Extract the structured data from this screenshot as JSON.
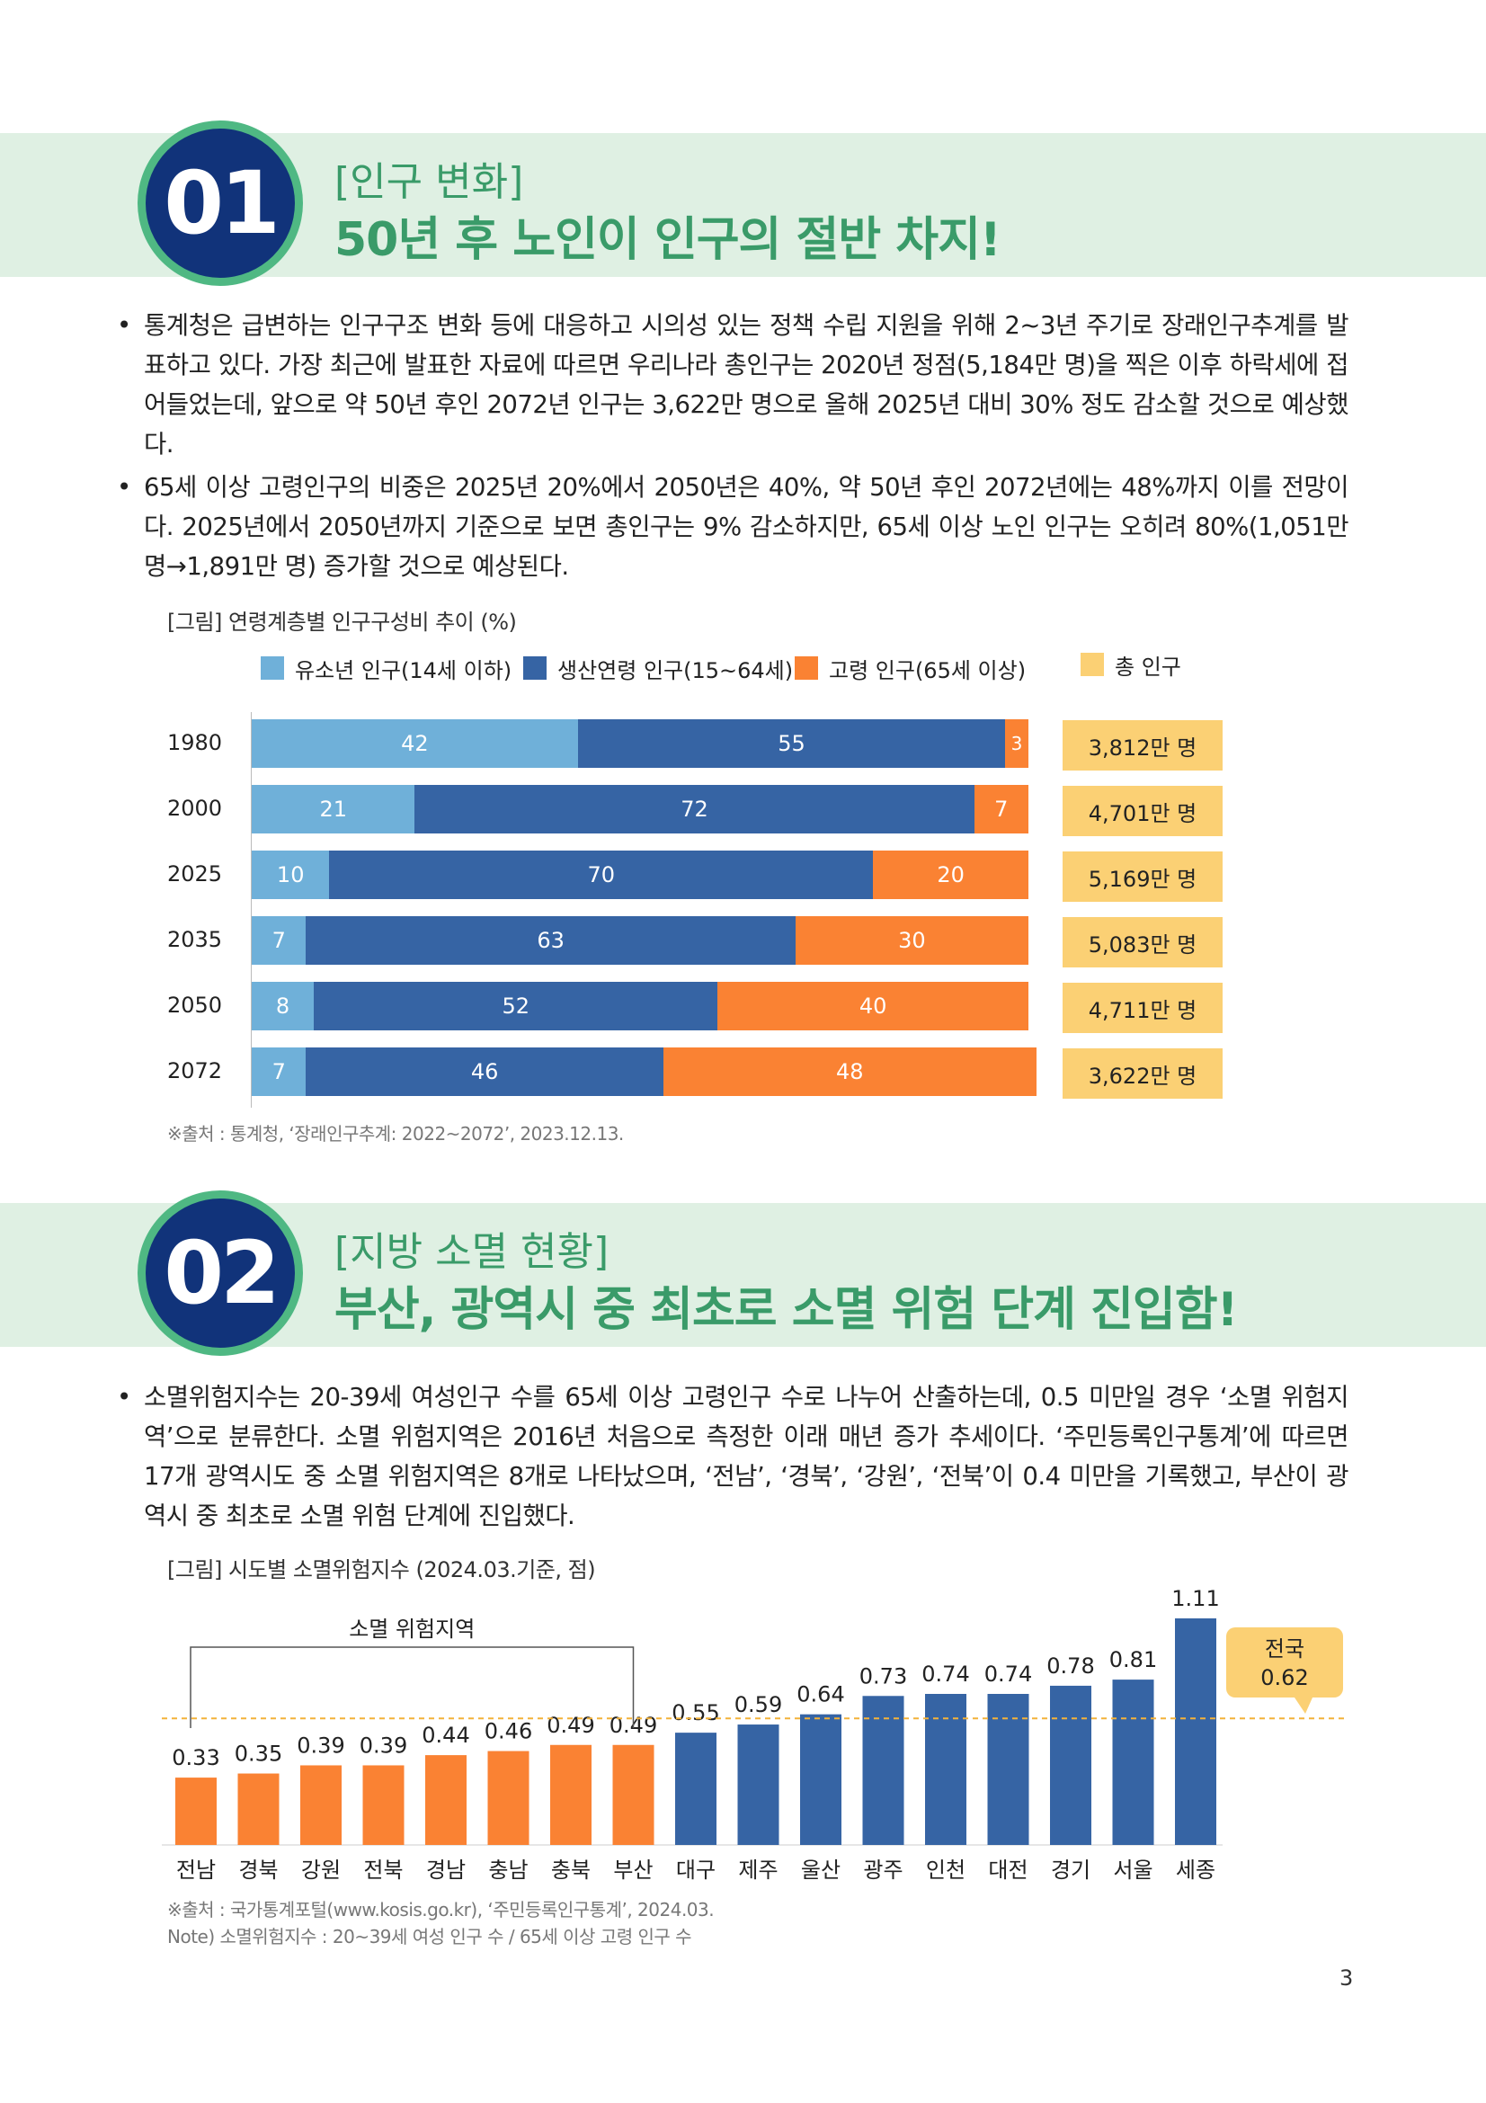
{
  "section1": {
    "number": "01",
    "tag": "[인구 변화]",
    "title": "50년 후 노인이 인구의 절반 차지!",
    "bullets": [
      "통계청은 급변하는 인구구조 변화 등에 대응하고 시의성 있는 정책 수립 지원을 위해 2~3년 주기로 장래인구추계를 발표하고 있다. 가장 최근에 발표한 자료에 따르면 우리나라 총인구는 2020년 정점(5,184만 명)을 찍은 이후 하락세에 접어들었는데, 앞으로 약 50년 후인 2072년 인구는 3,622만 명으로 올해 2025년 대비 30% 정도 감소할 것으로 예상했다.",
      "65세 이상 고령인구의 비중은 2025년 20%에서 2050년은 40%, 약 50년 후인 2072년에는 48%까지 이를 전망이다. 2025년에서 2050년까지 기준으로 보면 총인구는 9% 감소하지만, 65세 이상 노인 인구는 오히려 80%(1,051만 명→1,891만 명) 증가할 것으로 예상된다."
    ],
    "figure_caption": "[그림] 연령계층별 인구구성비 추이 (%)",
    "source": "※출처 : 통계청, ‘장래인구추계: 2022~2072’, 2023.12.13."
  },
  "section2": {
    "number": "02",
    "tag": "[지방 소멸 현황]",
    "title": "부산, 광역시 중 최초로 소멸 위험 단계 진입함!",
    "bullets": [
      "소멸위험지수는 20-39세 여성인구 수를 65세 이상 고령인구 수로 나누어 산출하는데, 0.5 미만일 경우 ‘소멸 위험지역’으로 분류한다. 소멸 위험지역은 2016년 처음으로 측정한 이래 매년 증가 추세이다. ‘주민등록인구통계’에 따르면 17개 광역시도 중 소멸 위험지역은 8개로 나타났으며, ‘전남’, ‘경북’, ‘강원’, ‘전북’이 0.4 미만을 기록했고, 부산이 광역시 중 최초로 소멸 위험 단계에 진입했다."
    ],
    "figure_caption": "[그림] 시도별 소멸위험지수 (2024.03.기준, 점)",
    "source": "※출처 : 국가통계포털(www.kosis.go.kr), ‘주민등록인구통계’, 2024.03.",
    "note": "Note) 소멸위험지수 : 20~39세 여성 인구 수 / 65세 이상 고령 인구 수"
  },
  "page_number": "3",
  "chart_data": [
    {
      "type": "bar",
      "orientation": "horizontal-stacked",
      "title": "[그림] 연령계층별 인구구성비 추이 (%)",
      "categories": [
        "1980",
        "2000",
        "2025",
        "2035",
        "2050",
        "2072"
      ],
      "series": [
        {
          "name": "유소년 인구(14세 이하)",
          "color": "#6fb0d9",
          "values": [
            42,
            21,
            10,
            7,
            8,
            7
          ]
        },
        {
          "name": "생산연령 인구(15~64세)",
          "color": "#3664a4",
          "values": [
            55,
            72,
            70,
            63,
            52,
            46
          ]
        },
        {
          "name": "고령 인구(65세 이상)",
          "color": "#fa8233",
          "values": [
            3,
            7,
            20,
            30,
            40,
            48
          ]
        }
      ],
      "total_label": "총 인구",
      "total_color": "#fbd074",
      "totals": [
        "3,812만 명",
        "4,701만 명",
        "5,169만 명",
        "5,083만 명",
        "4,711만 명",
        "3,622만 명"
      ],
      "xlim": [
        0,
        100
      ]
    },
    {
      "type": "bar",
      "title": "[그림] 시도별 소멸위험지수 (2024.03.기준, 점)",
      "categories": [
        "전남",
        "경북",
        "강원",
        "전북",
        "경남",
        "충남",
        "충북",
        "부산",
        "대구",
        "제주",
        "울산",
        "광주",
        "인천",
        "대전",
        "경기",
        "서울",
        "세종"
      ],
      "values": [
        0.33,
        0.35,
        0.39,
        0.39,
        0.44,
        0.46,
        0.49,
        0.49,
        0.55,
        0.59,
        0.64,
        0.73,
        0.74,
        0.74,
        0.78,
        0.81,
        1.11
      ],
      "value_labels": [
        "0.33",
        "0.35",
        "0.39",
        "0.39",
        "0.44",
        "0.46",
        "0.49",
        "0.49",
        "0.55",
        "0.59",
        "0.64",
        "0.73",
        "0.74",
        "0.74",
        "0.78",
        "0.81",
        "1.11"
      ],
      "risk_count": 8,
      "risk_color": "#fa8233",
      "normal_color": "#3664a4",
      "risk_bracket_label": "소멸 위험지역",
      "national_label": "전국",
      "national_value": 0.62,
      "national_value_label": "0.62",
      "ylim": [
        0,
        1.11
      ]
    }
  ]
}
